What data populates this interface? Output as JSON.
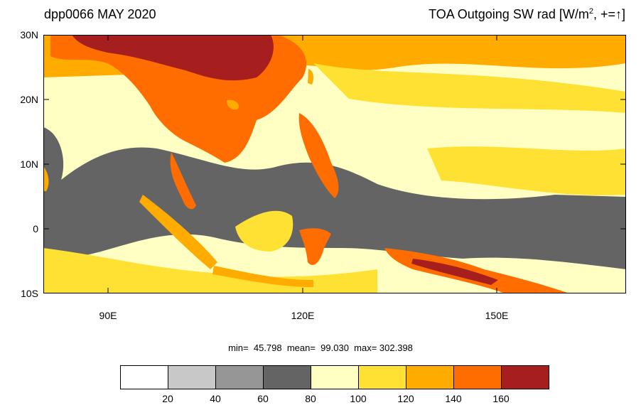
{
  "header": {
    "left_title": "dpp0066 MAY 2020",
    "right_title_prefix": "TOA Outgoing SW rad [W/m",
    "right_title_sup": "2",
    "right_title_suffix": ", +=",
    "right_title_arrow": "↑",
    "right_title_end": "]"
  },
  "map": {
    "lat_labels": [
      "30N",
      "20N",
      "10N",
      "0",
      "10S"
    ],
    "lon_labels": [
      "90E",
      "120E",
      "150E"
    ]
  },
  "stats": {
    "text": "min=  45.798  mean=  99.030  max= 302.398"
  },
  "colorbar": {
    "labels": [
      "20",
      "40",
      "60",
      "80",
      "100",
      "120",
      "140",
      "160"
    ],
    "colors": [
      "#ffffff",
      "#c8c8c8",
      "#969696",
      "#646464",
      "#ffffc4",
      "#ffe133",
      "#ffab00",
      "#ff6d00",
      "#a61e1e"
    ]
  },
  "colors": {
    "ocean_bg": "#ffffc4",
    "land": "#ff6d00"
  }
}
